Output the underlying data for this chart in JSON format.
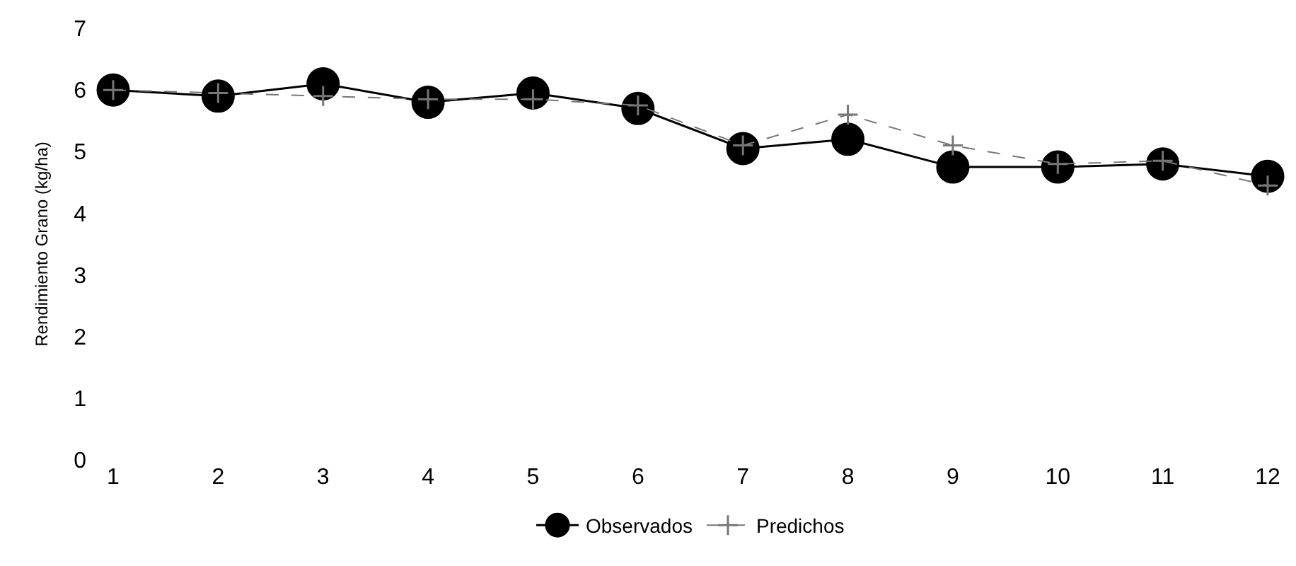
{
  "chart_data": {
    "type": "line",
    "ylabel": "Rendimiento Grano (kg/ha)",
    "x": [
      1,
      2,
      3,
      4,
      5,
      6,
      7,
      8,
      9,
      10,
      11,
      12
    ],
    "xlim": [
      1,
      12
    ],
    "xticks": [
      1,
      2,
      3,
      4,
      5,
      6,
      7,
      8,
      9,
      10,
      11,
      12
    ],
    "ylim": [
      0,
      7
    ],
    "yticks": [
      0,
      1,
      2,
      3,
      4,
      5,
      6,
      7
    ],
    "legend": "bottom",
    "series": [
      {
        "name": "Observados",
        "color": "#000000",
        "marker": "circle",
        "line_style": "solid",
        "values": [
          6.0,
          5.9,
          6.1,
          5.8,
          5.95,
          5.7,
          5.05,
          5.2,
          4.75,
          4.75,
          4.8,
          4.6
        ]
      },
      {
        "name": "Predichos",
        "color": "#777777",
        "marker": "cross",
        "line_style": "dashed",
        "values": [
          6.0,
          5.95,
          5.9,
          5.85,
          5.85,
          5.75,
          5.1,
          5.6,
          5.1,
          4.8,
          4.85,
          4.45
        ]
      }
    ]
  }
}
